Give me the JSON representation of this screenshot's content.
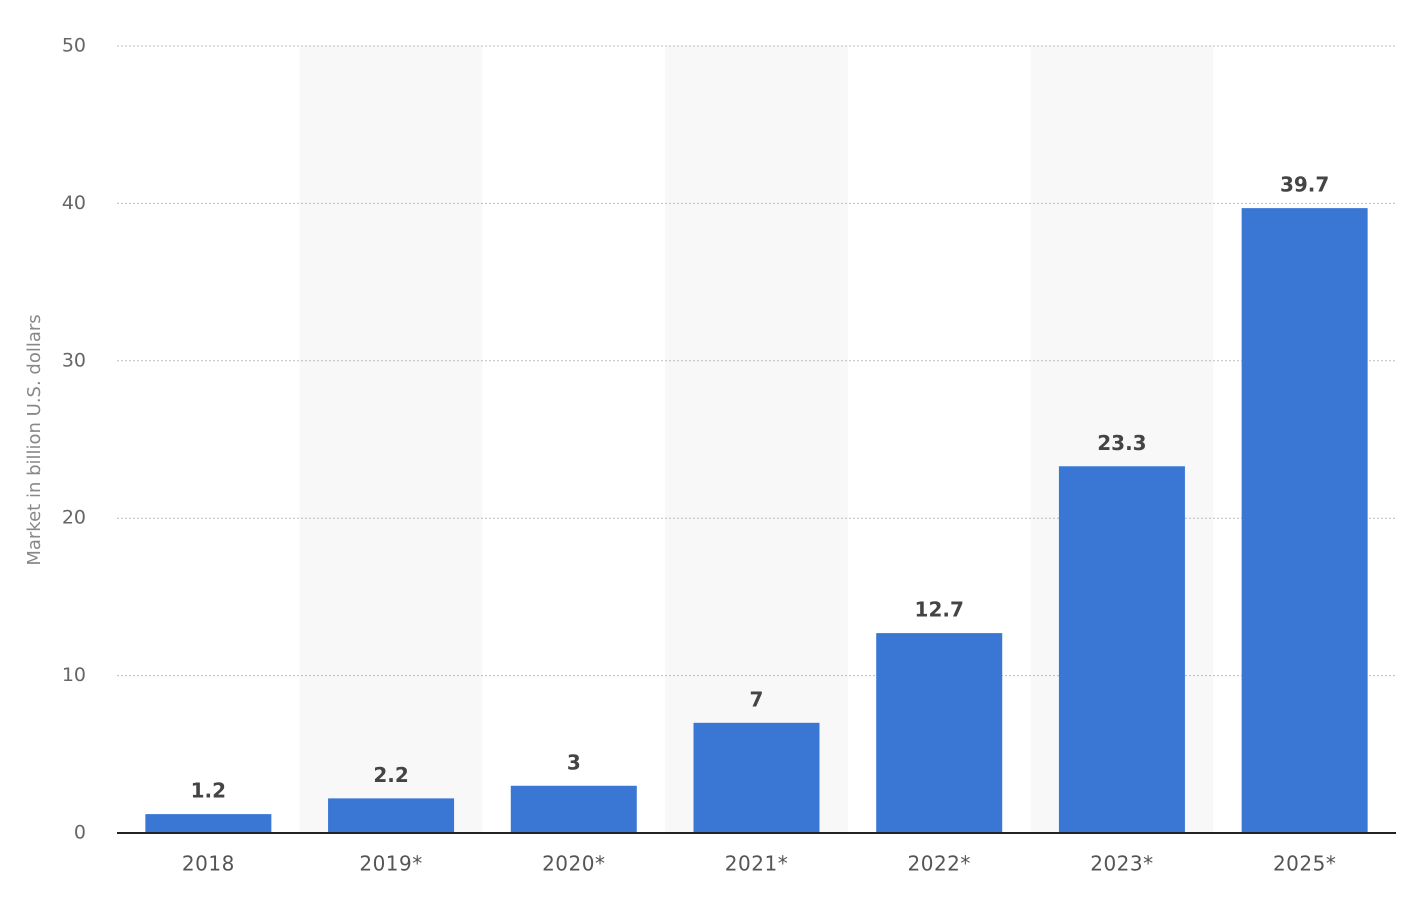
{
  "chart_data": {
    "type": "bar",
    "y_label": "Market in billion U.S. dollars",
    "categories": [
      "2018",
      "2019*",
      "2020*",
      "2021*",
      "2022*",
      "2023*",
      "2025*"
    ],
    "values": [
      1.2,
      2.2,
      3,
      7,
      12.7,
      23.3,
      39.7
    ],
    "color": "#3a77d5",
    "ylim": [
      0,
      50
    ],
    "yticks": [
      0,
      10,
      20,
      30,
      40,
      50
    ],
    "grid": true
  }
}
